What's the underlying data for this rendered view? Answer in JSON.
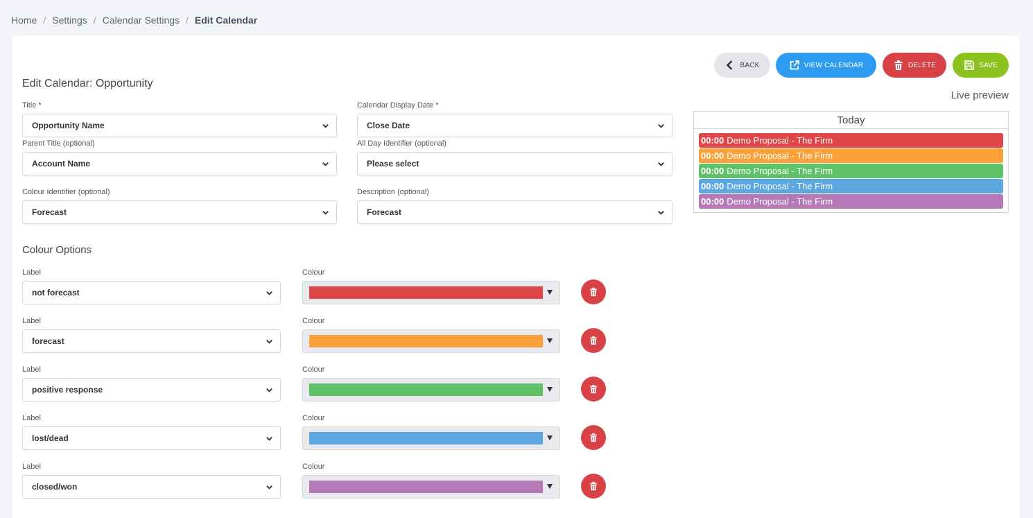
{
  "breadcrumb": [
    "Home",
    "Settings",
    "Calendar Settings",
    "Edit Calendar"
  ],
  "buttons": {
    "back": "BACK",
    "view_calendar": "VIEW CALENDAR",
    "delete": "DELETE",
    "save": "SAVE"
  },
  "page_title": "Edit Calendar: Opportunity",
  "live_preview_label": "Live preview",
  "fields": {
    "title_label": "Title *",
    "title_value": "Opportunity Name",
    "display_date_label": "Calendar Display Date *",
    "display_date_value": "Close Date",
    "parent_title_label": "Parent Title (optional)",
    "parent_title_value": "Account Name",
    "all_day_label": "All Day Identifier (optional)",
    "all_day_value": "Please select",
    "colour_identifier_label": "Colour Identifier (optional)",
    "colour_identifier_value": "Forecast",
    "description_label": "Description (optional)",
    "description_value": "Forecast"
  },
  "colour_options": {
    "title": "Colour Options",
    "label_header": "Label",
    "colour_header": "Colour",
    "rows": [
      {
        "label": "not forecast",
        "color": "#e04648"
      },
      {
        "label": "forecast",
        "color": "#fba13b"
      },
      {
        "label": "positive response",
        "color": "#60c268"
      },
      {
        "label": "lost/dead",
        "color": "#5ca7e0"
      },
      {
        "label": "closed/won",
        "color": "#b579b8"
      }
    ]
  },
  "preview": {
    "header": "Today",
    "events": [
      {
        "time": "00:00",
        "text": "Demo Proposal - The Firm",
        "color": "#e04648"
      },
      {
        "time": "00:00",
        "text": "Demo Proposal - The Firm",
        "color": "#fba13b"
      },
      {
        "time": "00:00",
        "text": "Demo Proposal - The Firm",
        "color": "#60c268"
      },
      {
        "time": "00:00",
        "text": "Demo Proposal - The Firm",
        "color": "#5ca7e0"
      },
      {
        "time": "00:00",
        "text": "Demo Proposal - The Firm",
        "color": "#b579b8"
      }
    ]
  },
  "colors": {
    "back": "#e4e5e8",
    "view": "#2d9cf0",
    "delete": "#d84146",
    "save": "#8cc21d"
  },
  "icons": {
    "back": "chevron-left-icon",
    "view": "external-link-icon",
    "delete": "trash-icon",
    "save": "floppy-disk-icon",
    "dropdown": "chevron-down-icon"
  }
}
